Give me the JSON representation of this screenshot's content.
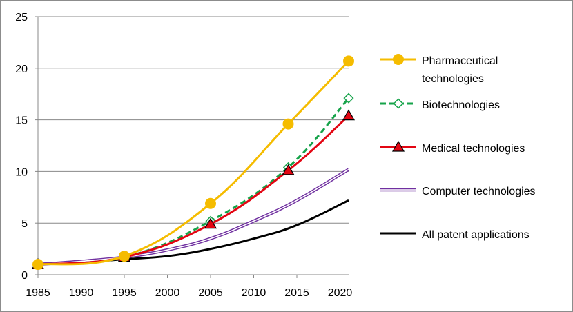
{
  "chart_data": {
    "type": "line",
    "title": "",
    "xlabel": "",
    "ylabel": "",
    "xlim": [
      1985,
      2021
    ],
    "ylim": [
      0,
      25
    ],
    "x_ticks": [
      1985,
      1990,
      1995,
      2000,
      2005,
      2010,
      2015,
      2020
    ],
    "y_ticks": [
      0,
      5,
      10,
      15,
      20,
      25
    ],
    "grid": "horizontal",
    "legend_position": "right",
    "series": [
      {
        "name": "Pharmaceutical technologies",
        "color": "#F5BC00",
        "marker": "circle",
        "line": "solid",
        "x": [
          1985,
          1995,
          2005,
          2014,
          2021
        ],
        "values": [
          1.0,
          1.8,
          6.9,
          14.6,
          20.7
        ]
      },
      {
        "name": "Biotechnologies",
        "color": "#16A34A",
        "marker": "diamond-open",
        "line": "dashed",
        "x": [
          1985,
          1995,
          2005,
          2014,
          2021
        ],
        "values": [
          1.0,
          1.7,
          5.2,
          10.4,
          17.1
        ]
      },
      {
        "name": "Medical technologies",
        "color": "#E30613",
        "marker": "triangle",
        "line": "solid",
        "x": [
          1985,
          1995,
          2005,
          2014,
          2021
        ],
        "values": [
          1.0,
          1.7,
          4.9,
          10.1,
          15.4
        ]
      },
      {
        "name": "Computer technologies",
        "color": "#7030A0",
        "marker": "none",
        "line": "double",
        "x": [
          1985,
          1990,
          1995,
          2000,
          2005,
          2010,
          2015,
          2021
        ],
        "values": [
          1.0,
          1.3,
          1.7,
          2.4,
          3.5,
          5.2,
          7.2,
          10.2
        ]
      },
      {
        "name": "All patent applications",
        "color": "#000000",
        "marker": "none",
        "line": "solid",
        "x": [
          1985,
          1990,
          1995,
          2000,
          2005,
          2010,
          2015,
          2021
        ],
        "values": [
          1.0,
          1.2,
          1.5,
          1.8,
          2.5,
          3.5,
          4.8,
          7.2
        ]
      }
    ]
  }
}
